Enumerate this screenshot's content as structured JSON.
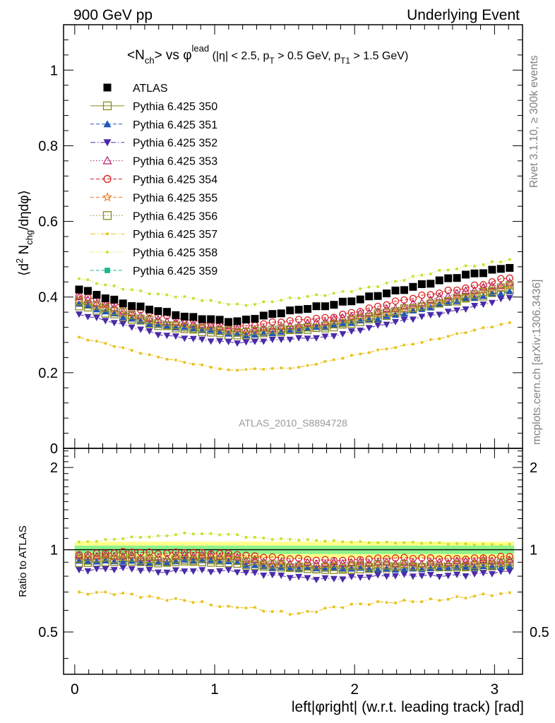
{
  "header": {
    "left": "900 GeV pp",
    "right": "Underlying Event"
  },
  "side_labels": {
    "top": "Rivet 3.1.10, ≥ 300k events",
    "bottom": "mcplots.cern.ch [arXiv:1306.3436]"
  },
  "analysis_tag": "ATLAS_2010_S8894728",
  "colors": {
    "ATLAS": "#000000",
    "p350": "#8a8a1e",
    "p351": "#1f56b8",
    "p352": "#4b2aa8",
    "p353": "#b0206e",
    "p354": "#d81e1e",
    "p355": "#ee7a22",
    "p356": "#8a8a1e",
    "p357": "#e8c21a",
    "p358": "#c6e02e",
    "p359": "#19b98c",
    "band_yellow": "#ffff8c",
    "band_green": "#8cf28c"
  },
  "chart_data": [
    {
      "type": "scatter",
      "panel": "main",
      "title": "⟨N_ch⟩ vs φ^lead (|η| < 2.5, p_T > 0.5 GeV, p_T1 > 1.5 GeV)",
      "title_parts": {
        "t1": "<N",
        "t1_sub": "ch",
        "t2": "> vs φ",
        "t2_sup": "lead",
        "t3": " (|η| < 2.5, p",
        "t3_sub": "T",
        "t4": " > 0.5 GeV, p",
        "t4_sub": "T1",
        "t5": " > 1.5 GeV)"
      },
      "ylabel": "⟨d² N_chg/dηdφ⟩",
      "ylabel_parts": {
        "p1": "⟨d",
        "p1_sup": "2",
        "p2": " N",
        "p2_sub": "chg",
        "p3": "/dηdφ⟩"
      },
      "xlim": [
        -0.08,
        3.2
      ],
      "ylim": [
        0,
        1.12
      ],
      "yticks": [
        0,
        0.2,
        0.4,
        0.6,
        0.8,
        1
      ],
      "ytick_labels": [
        "0",
        "0.2",
        "0.4",
        "0.6",
        "0.8",
        "1"
      ],
      "legend_position": "top-left",
      "x_binning": {
        "n": 50,
        "first": 0.031,
        "step": 0.0628
      },
      "series": [
        {
          "name": "ATLAS",
          "key": "ATLAS",
          "marker": "square-filled",
          "line": "none",
          "anchors": [
            [
              0,
              0.425
            ],
            [
              0.4,
              0.38
            ],
            [
              0.8,
              0.345
            ],
            [
              1.15,
              0.336
            ],
            [
              1.4,
              0.355
            ],
            [
              1.8,
              0.375
            ],
            [
              2.2,
              0.41
            ],
            [
              2.6,
              0.44
            ],
            [
              3.14,
              0.485
            ]
          ]
        },
        {
          "name": "Pythia 6.425 350",
          "key": "p350",
          "marker": "square-open",
          "line": "solid",
          "anchors": [
            [
              0,
              0.392
            ],
            [
              0.6,
              0.33
            ],
            [
              1.2,
              0.305
            ],
            [
              1.8,
              0.325
            ],
            [
              2.4,
              0.37
            ],
            [
              3.14,
              0.43
            ]
          ]
        },
        {
          "name": "Pythia 6.425 351",
          "key": "p351",
          "marker": "triangle-up-filled",
          "line": "dashed",
          "anchors": [
            [
              0,
              0.384
            ],
            [
              0.6,
              0.325
            ],
            [
              1.2,
              0.3
            ],
            [
              1.8,
              0.32
            ],
            [
              2.4,
              0.362
            ],
            [
              3.14,
              0.42
            ]
          ]
        },
        {
          "name": "Pythia 6.425 352",
          "key": "p352",
          "marker": "triangle-down-filled",
          "line": "dashdot",
          "anchors": [
            [
              0,
              0.36
            ],
            [
              0.6,
              0.3
            ],
            [
              1.2,
              0.278
            ],
            [
              1.8,
              0.296
            ],
            [
              2.4,
              0.34
            ],
            [
              3.14,
              0.4
            ]
          ]
        },
        {
          "name": "Pythia 6.425 353",
          "key": "p353",
          "marker": "triangle-up-open",
          "line": "dotted",
          "anchors": [
            [
              0,
              0.4
            ],
            [
              0.6,
              0.34
            ],
            [
              1.2,
              0.312
            ],
            [
              1.8,
              0.335
            ],
            [
              2.4,
              0.382
            ],
            [
              3.14,
              0.44
            ]
          ]
        },
        {
          "name": "Pythia 6.425 354",
          "key": "p354",
          "marker": "circle-open",
          "line": "dashed",
          "anchors": [
            [
              0,
              0.41
            ],
            [
              0.6,
              0.35
            ],
            [
              1.2,
              0.322
            ],
            [
              1.8,
              0.346
            ],
            [
              2.4,
              0.394
            ],
            [
              3.14,
              0.455
            ]
          ]
        },
        {
          "name": "Pythia 6.425 355",
          "key": "p355",
          "marker": "star-open",
          "line": "dashed",
          "anchors": [
            [
              0,
              0.388
            ],
            [
              0.6,
              0.33
            ],
            [
              1.2,
              0.305
            ],
            [
              1.8,
              0.326
            ],
            [
              2.4,
              0.372
            ],
            [
              3.14,
              0.43
            ]
          ]
        },
        {
          "name": "Pythia 6.425 356",
          "key": "p356",
          "marker": "square-open",
          "line": "dotted",
          "anchors": [
            [
              0,
              0.382
            ],
            [
              0.6,
              0.322
            ],
            [
              1.2,
              0.298
            ],
            [
              1.8,
              0.318
            ],
            [
              2.4,
              0.364
            ],
            [
              3.14,
              0.424
            ]
          ]
        },
        {
          "name": "Pythia 6.425 357",
          "key": "p357",
          "marker": "dot",
          "line": "dashdot",
          "anchors": [
            [
              0,
              0.295
            ],
            [
              0.5,
              0.25
            ],
            [
              1.1,
              0.205
            ],
            [
              1.6,
              0.215
            ],
            [
              2.2,
              0.26
            ],
            [
              2.7,
              0.3
            ],
            [
              3.14,
              0.332
            ]
          ]
        },
        {
          "name": "Pythia 6.425 358",
          "key": "p358",
          "marker": "dot",
          "line": "dotted",
          "anchors": [
            [
              0,
              0.452
            ],
            [
              0.6,
              0.405
            ],
            [
              1.2,
              0.38
            ],
            [
              1.8,
              0.405
            ],
            [
              2.4,
              0.45
            ],
            [
              3.14,
              0.505
            ]
          ]
        },
        {
          "name": "Pythia 6.425 359",
          "key": "p359",
          "marker": "square-small",
          "line": "dashed",
          "anchors": [
            [
              0,
              0.376
            ],
            [
              0.6,
              0.318
            ],
            [
              1.2,
              0.294
            ],
            [
              1.8,
              0.314
            ],
            [
              2.4,
              0.358
            ],
            [
              3.14,
              0.416
            ]
          ]
        }
      ]
    },
    {
      "type": "scatter",
      "panel": "ratio",
      "xlabel": "left|φright| (w.r.t. leading track) [rad]",
      "ylabel": "Ratio to ATLAS",
      "xlim": [
        -0.08,
        3.2
      ],
      "ylim": [
        0.35,
        2.35
      ],
      "yscale": "log",
      "xticks": [
        0,
        1,
        2,
        3
      ],
      "xtick_labels": [
        "0",
        "1",
        "2",
        "3"
      ],
      "yticks": [
        0.5,
        1,
        2
      ],
      "ytick_labels": [
        "0.5",
        "1",
        "2"
      ],
      "reference_line": 1,
      "band_yellow_halfwidth": 0.07,
      "band_green_halfwidth": 0.035
    }
  ]
}
